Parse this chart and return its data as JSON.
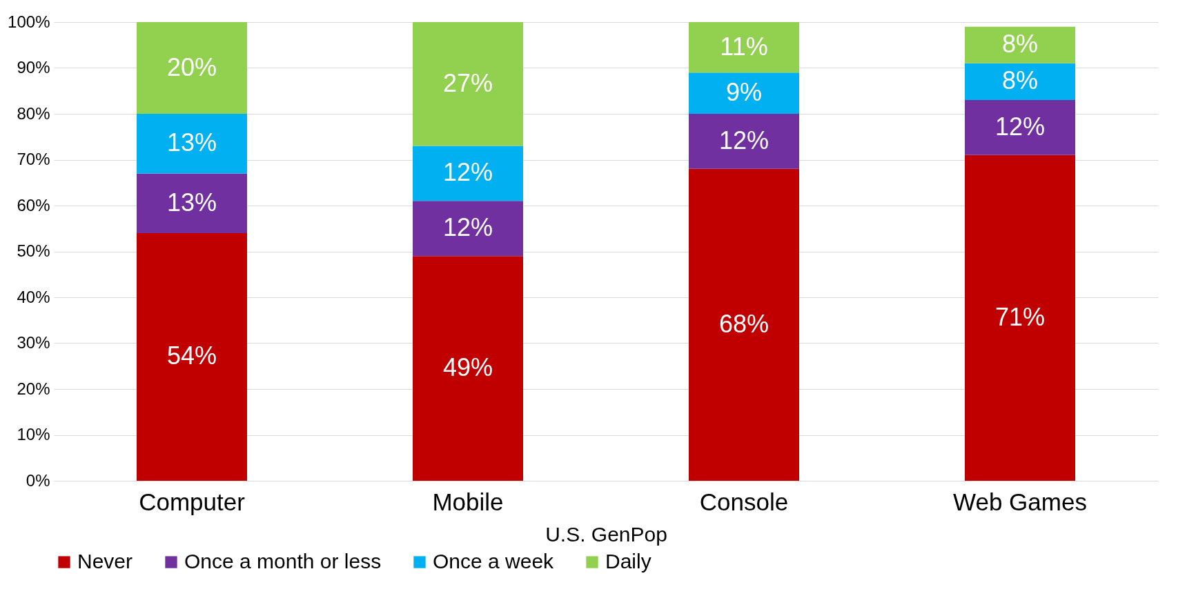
{
  "chart_data": {
    "type": "bar",
    "stacked": true,
    "xlabel": "U.S. GenPop",
    "categories": [
      "Computer",
      "Mobile",
      "Console",
      "Web Games"
    ],
    "series": [
      {
        "name": "Never",
        "color": "#c00000",
        "values": [
          54,
          49,
          68,
          71
        ],
        "value_labels": [
          "54%",
          "49%",
          "68%",
          "71%"
        ]
      },
      {
        "name": "Once a month or less",
        "color": "#7030a0",
        "values": [
          13,
          12,
          12,
          12
        ],
        "value_labels": [
          "13%",
          "12%",
          "12%",
          "12%"
        ]
      },
      {
        "name": "Once a week",
        "color": "#00b0f0",
        "values": [
          13,
          12,
          9,
          8
        ],
        "value_labels": [
          "13%",
          "12%",
          "9%",
          "8%"
        ]
      },
      {
        "name": "Daily",
        "color": "#92d050",
        "values": [
          20,
          27,
          11,
          8
        ],
        "value_labels": [
          "20%",
          "27%",
          "11%",
          "8%"
        ]
      }
    ],
    "ylim": [
      0,
      100
    ],
    "yticks": [
      {
        "value": 0,
        "label": "0%"
      },
      {
        "value": 10,
        "label": "10%"
      },
      {
        "value": 20,
        "label": "20%"
      },
      {
        "value": 30,
        "label": "30%"
      },
      {
        "value": 40,
        "label": "40%"
      },
      {
        "value": 50,
        "label": "50%"
      },
      {
        "value": 60,
        "label": "60%"
      },
      {
        "value": 70,
        "label": "70%"
      },
      {
        "value": 80,
        "label": "80%"
      },
      {
        "value": 90,
        "label": "90%"
      },
      {
        "value": 100,
        "label": "100%"
      }
    ],
    "grid": "y",
    "legend": "bottom"
  }
}
